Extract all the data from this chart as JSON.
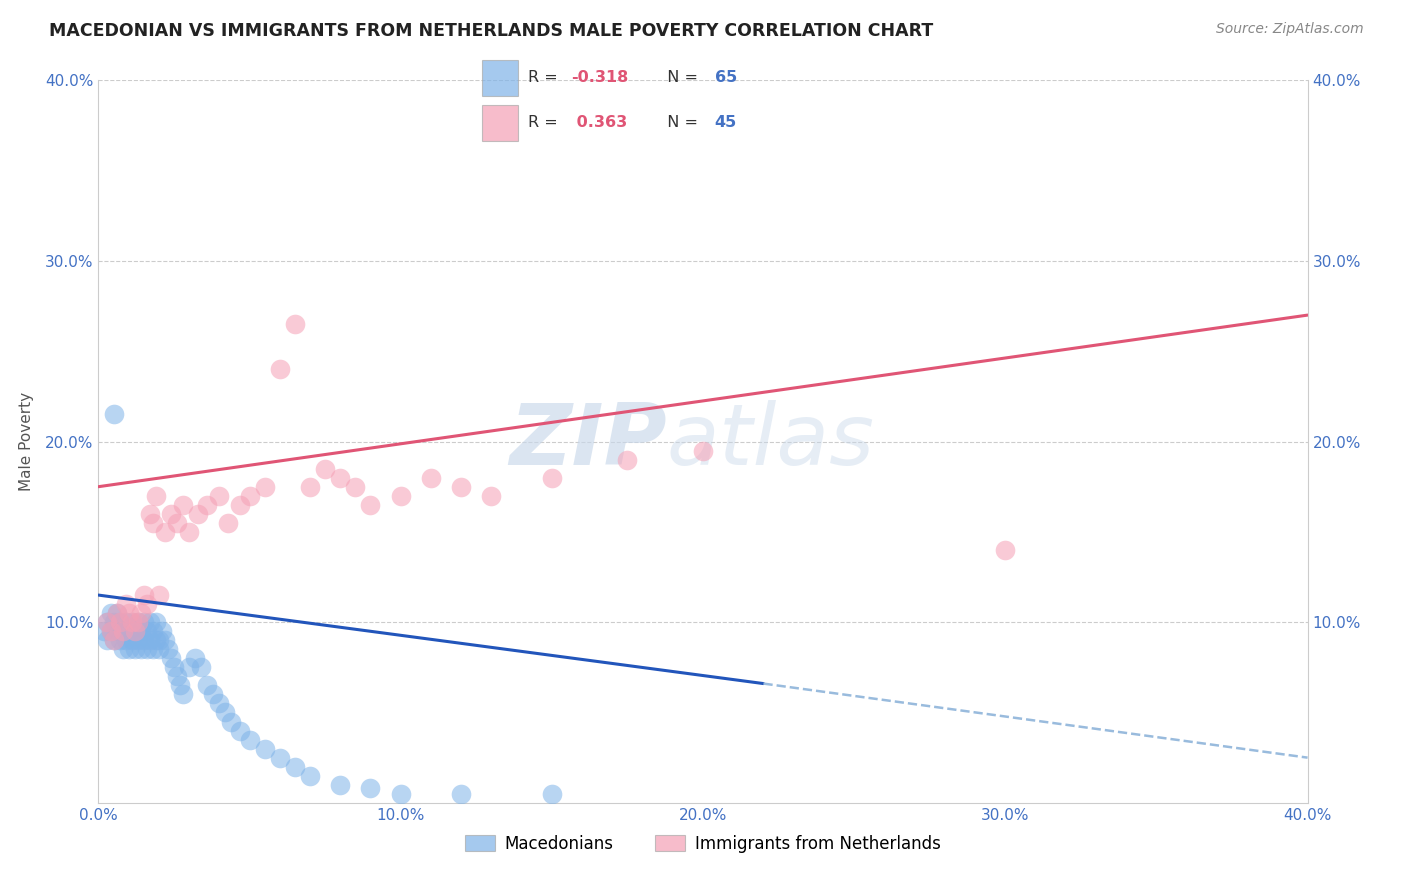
{
  "title": "MACEDONIAN VS IMMIGRANTS FROM NETHERLANDS MALE POVERTY CORRELATION CHART",
  "source": "Source: ZipAtlas.com",
  "ylabel": "Male Poverty",
  "xlim": [
    0.0,
    0.4
  ],
  "ylim": [
    0.0,
    0.4
  ],
  "xticks": [
    0.0,
    0.1,
    0.2,
    0.3,
    0.4
  ],
  "yticks": [
    0.1,
    0.2,
    0.3,
    0.4
  ],
  "xtick_labels": [
    "0.0%",
    "10.0%",
    "20.0%",
    "30.0%",
    "40.0%"
  ],
  "ytick_labels": [
    "10.0%",
    "20.0%",
    "30.0%",
    "40.0%"
  ],
  "grid_color": "#cccccc",
  "background_color": "#ffffff",
  "macedonian_color": "#7fb3e8",
  "netherlands_color": "#f5a0b5",
  "macedonian_R": -0.318,
  "macedonian_N": 65,
  "netherlands_R": 0.363,
  "netherlands_N": 45,
  "legend_label_1": "Macedonians",
  "legend_label_2": "Immigrants from Netherlands",
  "watermark_zip": "ZIP",
  "watermark_atlas": "atlas",
  "mac_line_x0": 0.0,
  "mac_line_y0": 0.115,
  "mac_line_x1": 0.22,
  "mac_line_y1": 0.066,
  "mac_line_dash_x1": 0.4,
  "mac_line_dash_y1": 0.025,
  "neth_line_x0": 0.0,
  "neth_line_y0": 0.175,
  "neth_line_x1": 0.4,
  "neth_line_y1": 0.27,
  "mac_scatter_x": [
    0.002,
    0.003,
    0.003,
    0.004,
    0.004,
    0.005,
    0.005,
    0.006,
    0.006,
    0.007,
    0.007,
    0.008,
    0.008,
    0.009,
    0.009,
    0.01,
    0.01,
    0.011,
    0.011,
    0.012,
    0.012,
    0.013,
    0.013,
    0.014,
    0.014,
    0.015,
    0.015,
    0.016,
    0.016,
    0.017,
    0.017,
    0.018,
    0.018,
    0.019,
    0.019,
    0.02,
    0.02,
    0.021,
    0.022,
    0.023,
    0.024,
    0.025,
    0.026,
    0.027,
    0.028,
    0.03,
    0.032,
    0.034,
    0.036,
    0.038,
    0.04,
    0.042,
    0.044,
    0.047,
    0.05,
    0.055,
    0.06,
    0.065,
    0.07,
    0.08,
    0.09,
    0.1,
    0.12,
    0.15,
    0.005
  ],
  "mac_scatter_y": [
    0.095,
    0.1,
    0.09,
    0.095,
    0.105,
    0.09,
    0.1,
    0.095,
    0.105,
    0.09,
    0.1,
    0.095,
    0.085,
    0.09,
    0.1,
    0.095,
    0.085,
    0.1,
    0.09,
    0.095,
    0.085,
    0.1,
    0.09,
    0.095,
    0.085,
    0.09,
    0.1,
    0.085,
    0.095,
    0.09,
    0.1,
    0.085,
    0.095,
    0.09,
    0.1,
    0.085,
    0.09,
    0.095,
    0.09,
    0.085,
    0.08,
    0.075,
    0.07,
    0.065,
    0.06,
    0.075,
    0.08,
    0.075,
    0.065,
    0.06,
    0.055,
    0.05,
    0.045,
    0.04,
    0.035,
    0.03,
    0.025,
    0.02,
    0.015,
    0.01,
    0.008,
    0.005,
    0.005,
    0.005,
    0.215
  ],
  "neth_scatter_x": [
    0.003,
    0.004,
    0.005,
    0.006,
    0.007,
    0.008,
    0.009,
    0.01,
    0.011,
    0.012,
    0.013,
    0.014,
    0.015,
    0.016,
    0.017,
    0.018,
    0.019,
    0.02,
    0.022,
    0.024,
    0.026,
    0.028,
    0.03,
    0.033,
    0.036,
    0.04,
    0.043,
    0.047,
    0.05,
    0.055,
    0.06,
    0.065,
    0.07,
    0.075,
    0.08,
    0.085,
    0.09,
    0.1,
    0.11,
    0.12,
    0.13,
    0.15,
    0.175,
    0.2,
    0.3
  ],
  "neth_scatter_y": [
    0.1,
    0.095,
    0.09,
    0.105,
    0.1,
    0.095,
    0.11,
    0.105,
    0.1,
    0.095,
    0.1,
    0.105,
    0.115,
    0.11,
    0.16,
    0.155,
    0.17,
    0.115,
    0.15,
    0.16,
    0.155,
    0.165,
    0.15,
    0.16,
    0.165,
    0.17,
    0.155,
    0.165,
    0.17,
    0.175,
    0.24,
    0.265,
    0.175,
    0.185,
    0.18,
    0.175,
    0.165,
    0.17,
    0.18,
    0.175,
    0.17,
    0.18,
    0.19,
    0.195,
    0.14
  ]
}
